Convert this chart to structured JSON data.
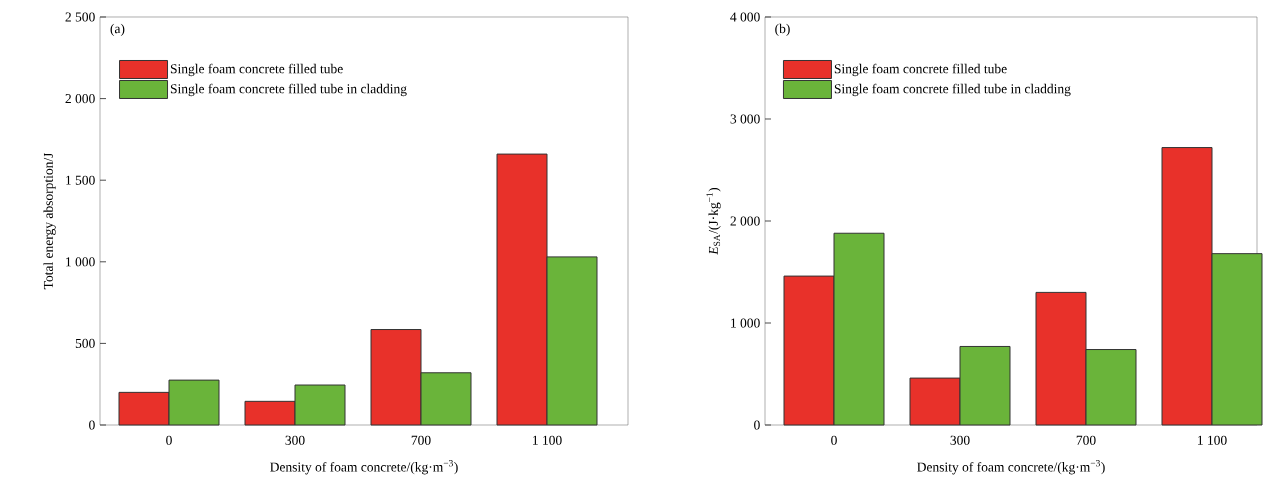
{
  "chart_data": [
    {
      "type": "bar",
      "categories": [
        "0",
        "300",
        "700",
        "1 100"
      ],
      "series": [
        {
          "name": "Single foam concrete filled tube",
          "color": "#e8312a",
          "values": [
            200,
            145,
            585,
            1660
          ]
        },
        {
          "name": "Single foam concrete filled tube in cladding",
          "color": "#6ab43a",
          "values": [
            275,
            245,
            320,
            1030
          ]
        }
      ],
      "ylim": [
        0,
        2500
      ],
      "yticks": [
        0,
        {
          "value": 500,
          "label": "500"
        },
        {
          "value": 1000,
          "label": "1 000"
        },
        {
          "value": 1500,
          "label": "1 500"
        },
        {
          "value": 2000,
          "label": "2 000"
        },
        {
          "value": 2500,
          "label": "2 500"
        }
      ],
      "xlabel": "Density of foam concrete/(kg·m$^{−3}$)",
      "ylabel": "Total energy absorption/J",
      "legend": "top left",
      "annotations": [
        "(a)"
      ]
    },
    {
      "type": "bar",
      "categories": [
        "0",
        "300",
        "700",
        "1 100"
      ],
      "series": [
        {
          "name": "Single foam concrete filled tube",
          "color": "#e8312a",
          "values": [
            1460,
            460,
            1300,
            2720
          ]
        },
        {
          "name": "Single foam concrete filled tube in cladding",
          "color": "#6ab43a",
          "values": [
            1880,
            770,
            740,
            1680
          ]
        }
      ],
      "ylim": [
        0,
        4000
      ],
      "yticks": [
        0,
        {
          "value": 1000,
          "label": "1 000"
        },
        {
          "value": 2000,
          "label": "2 000"
        },
        {
          "value": 3000,
          "label": "3 000"
        },
        {
          "value": 4000,
          "label": "4 000"
        }
      ],
      "xlabel": "Density of foam concrete/(kg·m$^{−3}$)",
      "ylabel": "*E*$_{SA}$/(J·kg$^{−1}$)",
      "legend": "top left",
      "annotations": [
        "(b)"
      ]
    }
  ]
}
